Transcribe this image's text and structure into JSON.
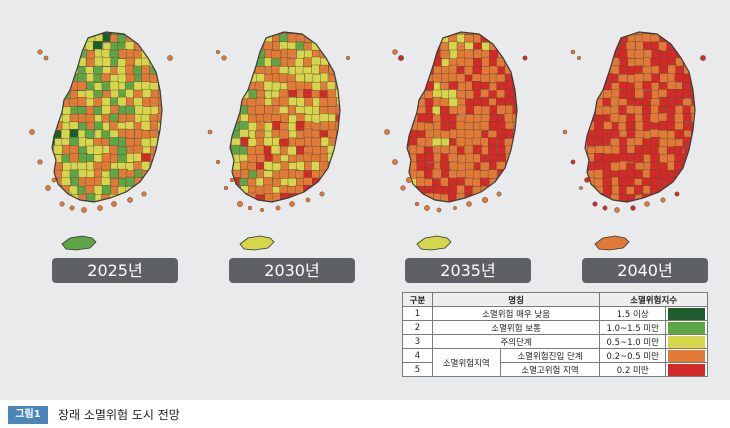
{
  "colors": {
    "level1": "#1e5e2e",
    "level2": "#5ea645",
    "level3": "#d5d64b",
    "level4": "#e07a36",
    "level5": "#d22a26"
  },
  "maps": [
    {
      "year_label": "2025년",
      "mix": [
        0.15,
        0.2,
        0.3,
        0.33,
        0.02
      ]
    },
    {
      "year_label": "2030년",
      "mix": [
        0.04,
        0.16,
        0.2,
        0.45,
        0.15
      ]
    },
    {
      "year_label": "2035년",
      "mix": [
        0.01,
        0.06,
        0.13,
        0.45,
        0.35
      ]
    },
    {
      "year_label": "2040년",
      "mix": [
        0.0,
        0.02,
        0.06,
        0.4,
        0.52
      ]
    }
  ],
  "legend": {
    "headers": {
      "col1": "구분",
      "col2": "명칭",
      "col3": "소멸위험지수"
    },
    "group_label": "소멸위험지역",
    "rows": [
      {
        "id": "1",
        "name": "소멸위험 매우 낮음",
        "range": "1.5 이상"
      },
      {
        "id": "2",
        "name": "소멸위험 보통",
        "range": "1.0~1.5 미만"
      },
      {
        "id": "3",
        "name": "주의단계",
        "range": "0.5~1.0 미만"
      },
      {
        "id": "4",
        "name": "소멸위험진입 단계",
        "range": "0.2~0.5 미만"
      },
      {
        "id": "5",
        "name": "소멸고위험 지역",
        "range": "0.2 미만"
      }
    ]
  },
  "caption": {
    "tag": "그림1",
    "text": "장래 소멸위험 도시 전망"
  }
}
